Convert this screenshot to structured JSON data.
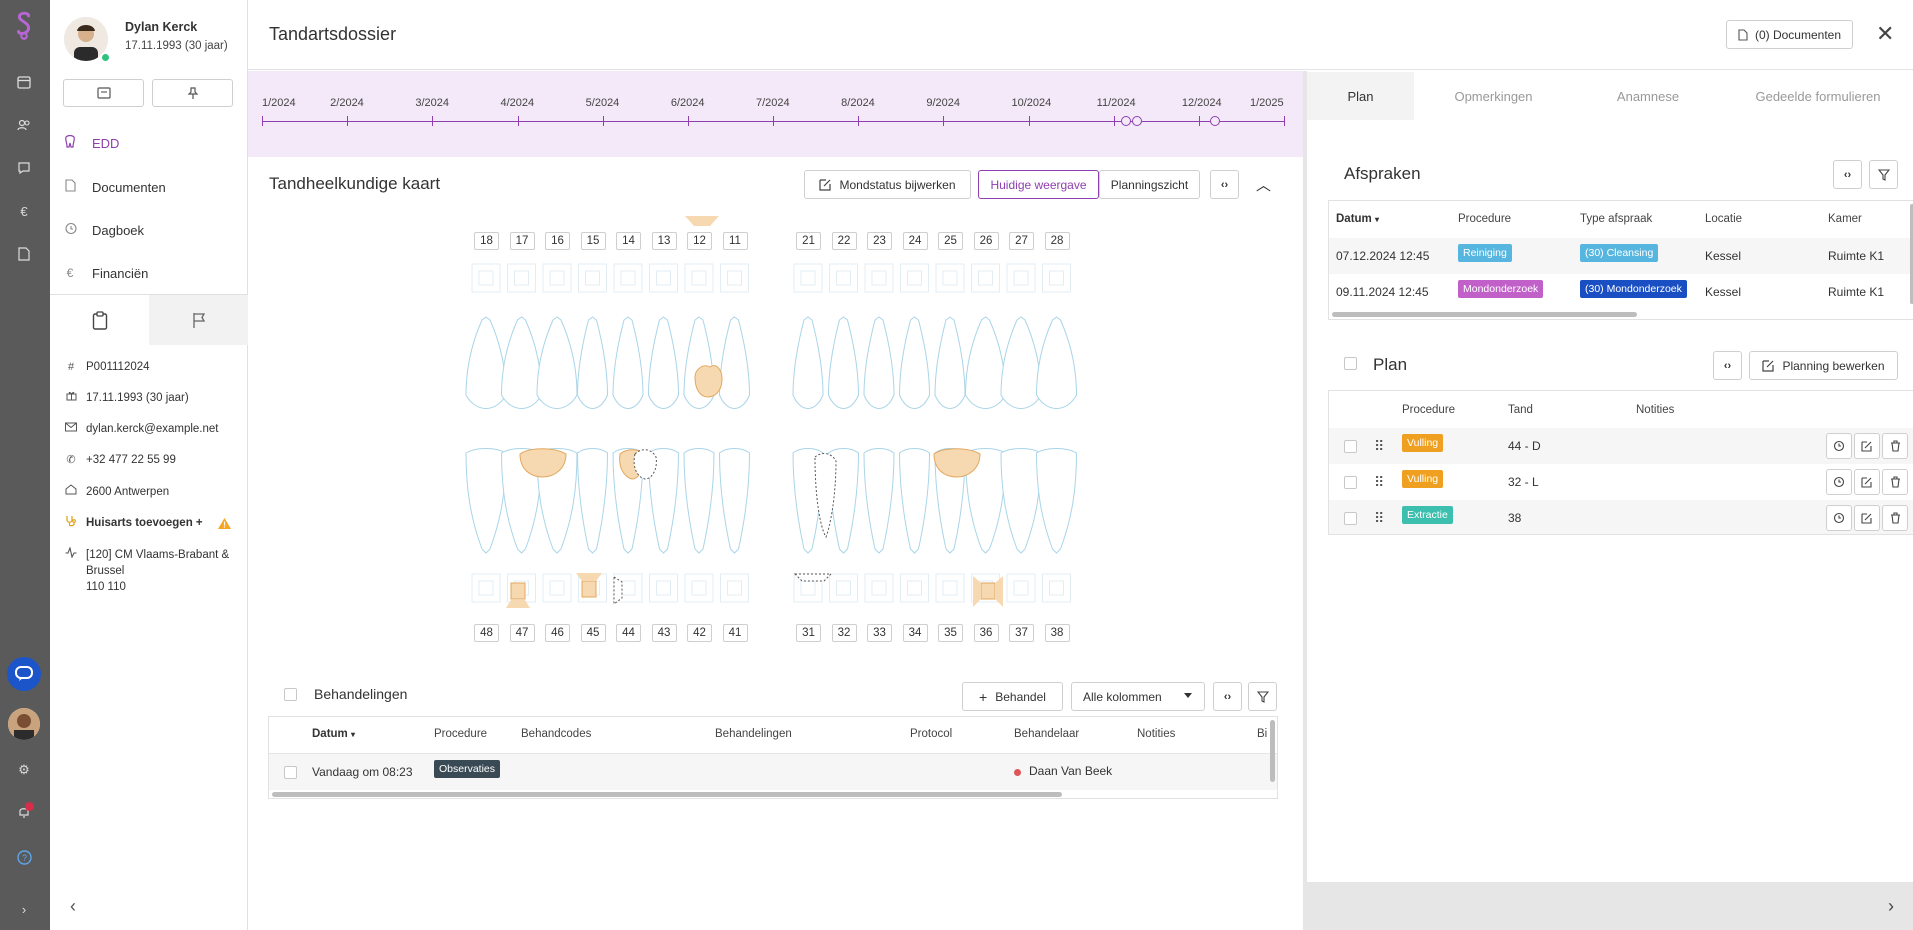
{
  "patient": {
    "name": "Dylan Kerck",
    "dob": "17.11.1993 (30 jaar)"
  },
  "nav": [
    {
      "label": "EDD",
      "icon": "tooth-icon"
    },
    {
      "label": "Documenten",
      "icon": "document-icon"
    },
    {
      "label": "Dagboek",
      "icon": "history-icon"
    },
    {
      "label": "Financiën",
      "icon": "euro-icon"
    }
  ],
  "info": {
    "id": "P001112024",
    "birth": "17.11.1993 (30 jaar)",
    "email": "dylan.kerck@example.net",
    "phone": "+32 477 22 55 99",
    "address": "2600 Antwerpen",
    "gp": "Huisarts toevoegen +",
    "insurer_line1": "[120] CM Vlaams-Brabant &",
    "insurer_line2": "Brussel",
    "insurer_line3": "110 110"
  },
  "header": {
    "title": "Tandartsdossier",
    "documents_button": "(0) Documenten"
  },
  "timeline": [
    "1/2024",
    "2/2024",
    "3/2024",
    "4/2024",
    "5/2024",
    "6/2024",
    "7/2024",
    "8/2024",
    "9/2024",
    "10/2024",
    "11/2024",
    "12/2024",
    "1/2025"
  ],
  "chart": {
    "title": "Tandheelkundige kaart",
    "update_button": "Mondstatus bijwerken",
    "current_view": "Huidige weergave",
    "planning_view": "Planningszicht",
    "upper_right": [
      "18",
      "17",
      "16",
      "15",
      "14",
      "13",
      "12",
      "11"
    ],
    "upper_left": [
      "21",
      "22",
      "23",
      "24",
      "25",
      "26",
      "27",
      "28"
    ],
    "lower_right": [
      "48",
      "47",
      "46",
      "45",
      "44",
      "43",
      "42",
      "41"
    ],
    "lower_left": [
      "31",
      "32",
      "33",
      "34",
      "35",
      "36",
      "37",
      "38"
    ]
  },
  "treatments": {
    "title": "Behandelingen",
    "add_button": "Behandel",
    "columns_select": "Alle kolommen",
    "headers": [
      "Datum",
      "Procedure",
      "Behandcodes",
      "Behandelingen",
      "Protocol",
      "Behandelaar",
      "Notities",
      "Bi"
    ],
    "rows": [
      {
        "date": "Vandaag om 08:23",
        "procedure": "Observaties",
        "practitioner": "Daan Van Beek"
      }
    ]
  },
  "right_tabs": [
    "Plan",
    "Opmerkingen",
    "Anamnese",
    "Gedeelde formulieren"
  ],
  "appointments": {
    "title": "Afspraken",
    "headers": [
      "Datum",
      "Procedure",
      "Type afspraak",
      "Locatie",
      "Kamer"
    ],
    "rows": [
      {
        "date": "07.12.2024 12:45",
        "procedure": "Reiniging",
        "type": "(30) Cleansing",
        "location": "Kessel",
        "room": "Ruimte K1"
      },
      {
        "date": "09.11.2024 12:45",
        "procedure": "Mondonderzoek",
        "type": "(30) Mondonderzoek",
        "location": "Kessel",
        "room": "Ruimte K1"
      }
    ]
  },
  "plan": {
    "title": "Plan",
    "edit_button": "Planning bewerken",
    "headers": [
      "Procedure",
      "Tand",
      "Notities"
    ],
    "rows": [
      {
        "procedure": "Vulling",
        "tooth": "44 - D"
      },
      {
        "procedure": "Vulling",
        "tooth": "32 - L"
      },
      {
        "procedure": "Extractie",
        "tooth": "38"
      }
    ]
  },
  "colors": {
    "accent": "#8e3fb0",
    "filling": "#f6d9b0",
    "cleansing": "#57b6e0",
    "exam": "#c060c8",
    "exam_type": "#1a4fc4",
    "extraction": "#3cbfae",
    "vulling": "#f0a020"
  }
}
